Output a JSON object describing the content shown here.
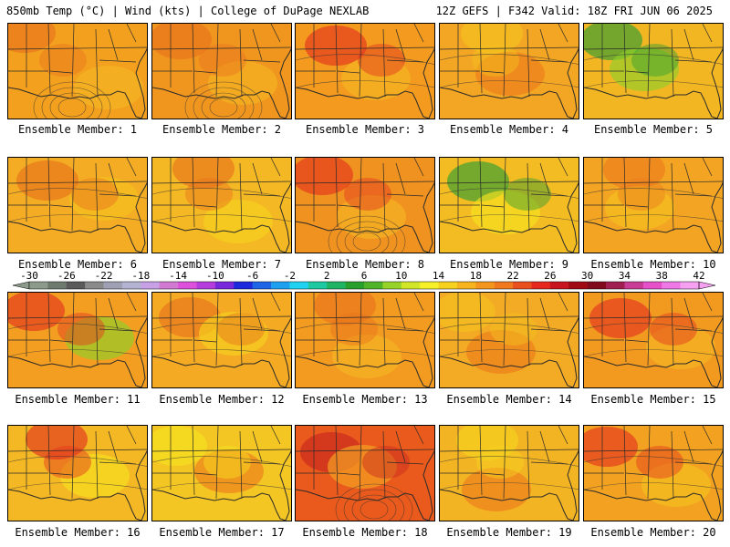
{
  "header": {
    "left": "850mb Temp (°C) | Wind (kts) | College of DuPage NEXLAB",
    "right": "12Z GEFS | F342 Valid: 18Z FRI JUN 06 2025"
  },
  "caption_prefix": "Ensemble Member: ",
  "members": [
    {
      "label": "Ensemble Member: 1",
      "base": "#f2a01e",
      "accents": [
        "#e8731c",
        "#f4b623"
      ],
      "low_center": true
    },
    {
      "label": "Ensemble Member: 2",
      "base": "#f0961f",
      "accents": [
        "#e8731c",
        "#f4b623"
      ],
      "low_center": true
    },
    {
      "label": "Ensemble Member: 3",
      "base": "#f39a1f",
      "accents": [
        "#e3351e",
        "#f4b623"
      ],
      "low_center": false
    },
    {
      "label": "Ensemble Member: 4",
      "base": "#f3a623",
      "accents": [
        "#f4c21f",
        "#ec7d1c"
      ],
      "low_center": false
    },
    {
      "label": "Ensemble Member: 5",
      "base": "#f2b623",
      "accents": [
        "#2f9e34",
        "#8fcf2a"
      ],
      "low_center": false
    },
    {
      "label": "Ensemble Member: 6",
      "base": "#f3ac24",
      "accents": [
        "#e8731c",
        "#f4c21f"
      ],
      "low_center": false
    },
    {
      "label": "Ensemble Member: 7",
      "base": "#f4b824",
      "accents": [
        "#e8731c",
        "#f6d21f"
      ],
      "low_center": false
    },
    {
      "label": "Ensemble Member: 8",
      "base": "#f0921f",
      "accents": [
        "#e3351e",
        "#f4b623"
      ],
      "low_center": true
    },
    {
      "label": "Ensemble Member: 9",
      "base": "#f4bc23",
      "accents": [
        "#2f9e34",
        "#f6e21f"
      ],
      "low_center": false
    },
    {
      "label": "Ensemble Member: 10",
      "base": "#f3a423",
      "accents": [
        "#ec7d1c",
        "#f4c21f"
      ],
      "low_center": false
    },
    {
      "label": "Ensemble Member: 11",
      "base": "#f39e21",
      "accents": [
        "#e3351e",
        "#8fcf2a"
      ],
      "low_center": false
    },
    {
      "label": "Ensemble Member: 12",
      "base": "#f4aa23",
      "accents": [
        "#e8731c",
        "#f6d21f"
      ],
      "low_center": false
    },
    {
      "label": "Ensemble Member: 13",
      "base": "#f39a20",
      "accents": [
        "#e8731c",
        "#f4b623"
      ],
      "low_center": false
    },
    {
      "label": "Ensemble Member: 14",
      "base": "#f3aa24",
      "accents": [
        "#f4c21f",
        "#ec7d1c"
      ],
      "low_center": false
    },
    {
      "label": "Ensemble Member: 15",
      "base": "#f29a20",
      "accents": [
        "#e3351e",
        "#f4b623"
      ],
      "low_center": false
    },
    {
      "label": "Ensemble Member: 16",
      "base": "#f4b824",
      "accents": [
        "#e3351e",
        "#f6e21f"
      ],
      "low_center": false
    },
    {
      "label": "Ensemble Member: 17",
      "base": "#f4c624",
      "accents": [
        "#f6e21f",
        "#ec7d1c"
      ],
      "low_center": false
    },
    {
      "label": "Ensemble Member: 18",
      "base": "#ea5a1c",
      "accents": [
        "#c8281e",
        "#f4a623"
      ],
      "low_center": true
    },
    {
      "label": "Ensemble Member: 19",
      "base": "#f3b424",
      "accents": [
        "#f6d21f",
        "#ec7d1c"
      ],
      "low_center": false
    },
    {
      "label": "Ensemble Member: 20",
      "base": "#f2a220",
      "accents": [
        "#e3351e",
        "#f4c21f"
      ],
      "low_center": false
    }
  ],
  "colorbar": {
    "labels": [
      "-30",
      "-26",
      "-22",
      "-18",
      "-14",
      "-10",
      "-6",
      "-2",
      "2",
      "6",
      "10",
      "14",
      "18",
      "22",
      "26",
      "30",
      "34",
      "38",
      "42"
    ],
    "colors": [
      "#8c9a8c",
      "#6e7a6e",
      "#5a5a5a",
      "#8a8a8a",
      "#a0a0b4",
      "#b4b4d2",
      "#c8a0e6",
      "#d27ad2",
      "#dc50dc",
      "#b43cdc",
      "#7828dc",
      "#1e28dc",
      "#1e64e6",
      "#1ea0f0",
      "#1ed2f0",
      "#1ec8a0",
      "#1eb464",
      "#28a02d",
      "#50b428",
      "#96d228",
      "#d2e628",
      "#f6f028",
      "#f6d21e",
      "#f6b41e",
      "#f4961e",
      "#f0781e",
      "#ea501e",
      "#e6281e",
      "#c8141e",
      "#a00a14",
      "#820a1e",
      "#a01e50",
      "#c83c96",
      "#e650c8",
      "#f078e6",
      "#f5a0f0"
    ]
  }
}
